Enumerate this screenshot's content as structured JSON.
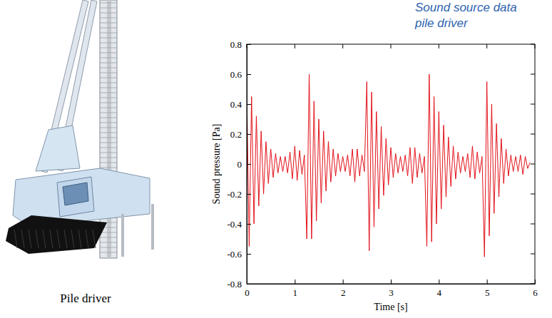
{
  "chart_data": {
    "type": "line",
    "title": [
      "Sound source data",
      "pile driver"
    ],
    "x_label": "Time [s]",
    "y_label": "Sound pressure [Pa]",
    "color": "#e3121b",
    "xlim": [
      0,
      6
    ],
    "ylim": [
      -0.8,
      0.8
    ],
    "xticks": [
      0,
      1,
      2,
      3,
      4,
      5,
      6
    ],
    "yticks": [
      -0.8,
      -0.6,
      -0.4,
      -0.2,
      0,
      0.2,
      0.4,
      0.6,
      0.8
    ],
    "x": [
      0,
      0.05,
      0.1,
      0.15,
      0.2,
      0.25,
      0.3,
      0.35,
      0.4,
      0.45,
      0.5,
      0.55,
      0.6,
      0.65,
      0.7,
      0.75,
      0.8,
      0.85,
      0.9,
      0.95,
      1,
      1.05,
      1.1,
      1.15,
      1.2,
      1.25,
      1.3,
      1.35,
      1.4,
      1.45,
      1.5,
      1.55,
      1.6,
      1.65,
      1.7,
      1.75,
      1.8,
      1.85,
      1.9,
      1.95,
      2,
      2.05,
      2.1,
      2.15,
      2.2,
      2.25,
      2.3,
      2.35,
      2.4,
      2.45,
      2.5,
      2.55,
      2.6,
      2.65,
      2.7,
      2.75,
      2.8,
      2.85,
      2.9,
      2.95,
      3,
      3.05,
      3.1,
      3.15,
      3.2,
      3.25,
      3.3,
      3.35,
      3.4,
      3.45,
      3.5,
      3.55,
      3.6,
      3.65,
      3.7,
      3.75,
      3.8,
      3.85,
      3.9,
      3.95,
      4,
      4.05,
      4.1,
      4.15,
      4.2,
      4.25,
      4.3,
      4.35,
      4.4,
      4.45,
      4.5,
      4.55,
      4.6,
      4.65,
      4.7,
      4.75,
      4.8,
      4.85,
      4.9,
      4.95,
      5,
      5.05,
      5.1,
      5.15,
      5.2,
      5.25,
      5.3,
      5.35,
      5.4,
      5.45,
      5.5,
      5.55,
      5.6,
      5.65,
      5.7,
      5.75,
      5.8,
      5.85,
      5.9
    ],
    "values": [
      0.5,
      -0.55,
      0.45,
      -0.4,
      0.32,
      -0.28,
      0.22,
      -0.2,
      0.15,
      -0.13,
      0.1,
      -0.09,
      0.07,
      -0.06,
      0.05,
      -0.05,
      0.05,
      -0.06,
      0.08,
      -0.1,
      0.12,
      -0.11,
      0.09,
      -0.07,
      0.06,
      -0.5,
      0.6,
      -0.5,
      0.42,
      -0.38,
      0.3,
      -0.26,
      0.22,
      -0.18,
      0.15,
      -0.12,
      0.1,
      -0.08,
      0.07,
      -0.05,
      0.05,
      -0.05,
      0.06,
      -0.08,
      0.1,
      -0.12,
      0.1,
      -0.08,
      0.06,
      -0.05,
      0.55,
      -0.58,
      0.48,
      -0.42,
      0.35,
      -0.3,
      0.25,
      -0.21,
      0.17,
      -0.14,
      0.11,
      -0.09,
      0.07,
      -0.06,
      0.05,
      -0.05,
      0.06,
      -0.08,
      0.11,
      -0.13,
      0.11,
      -0.09,
      0.07,
      -0.06,
      0.05,
      -0.55,
      0.6,
      -0.52,
      0.45,
      -0.4,
      0.35,
      -0.3,
      0.26,
      -0.22,
      0.18,
      -0.15,
      0.12,
      -0.1,
      0.08,
      -0.06,
      0.05,
      -0.05,
      0.07,
      -0.09,
      0.12,
      -0.1,
      0.08,
      -0.06,
      0.05,
      -0.62,
      0.55,
      -0.48,
      0.4,
      -0.33,
      0.27,
      -0.22,
      0.17,
      -0.13,
      0.1,
      -0.08,
      0.06,
      -0.05,
      0.05,
      -0.05,
      0.06,
      -0.07,
      0.05,
      -0.03,
      0.01
    ]
  },
  "illustration": {
    "caption": "Pile driver"
  }
}
